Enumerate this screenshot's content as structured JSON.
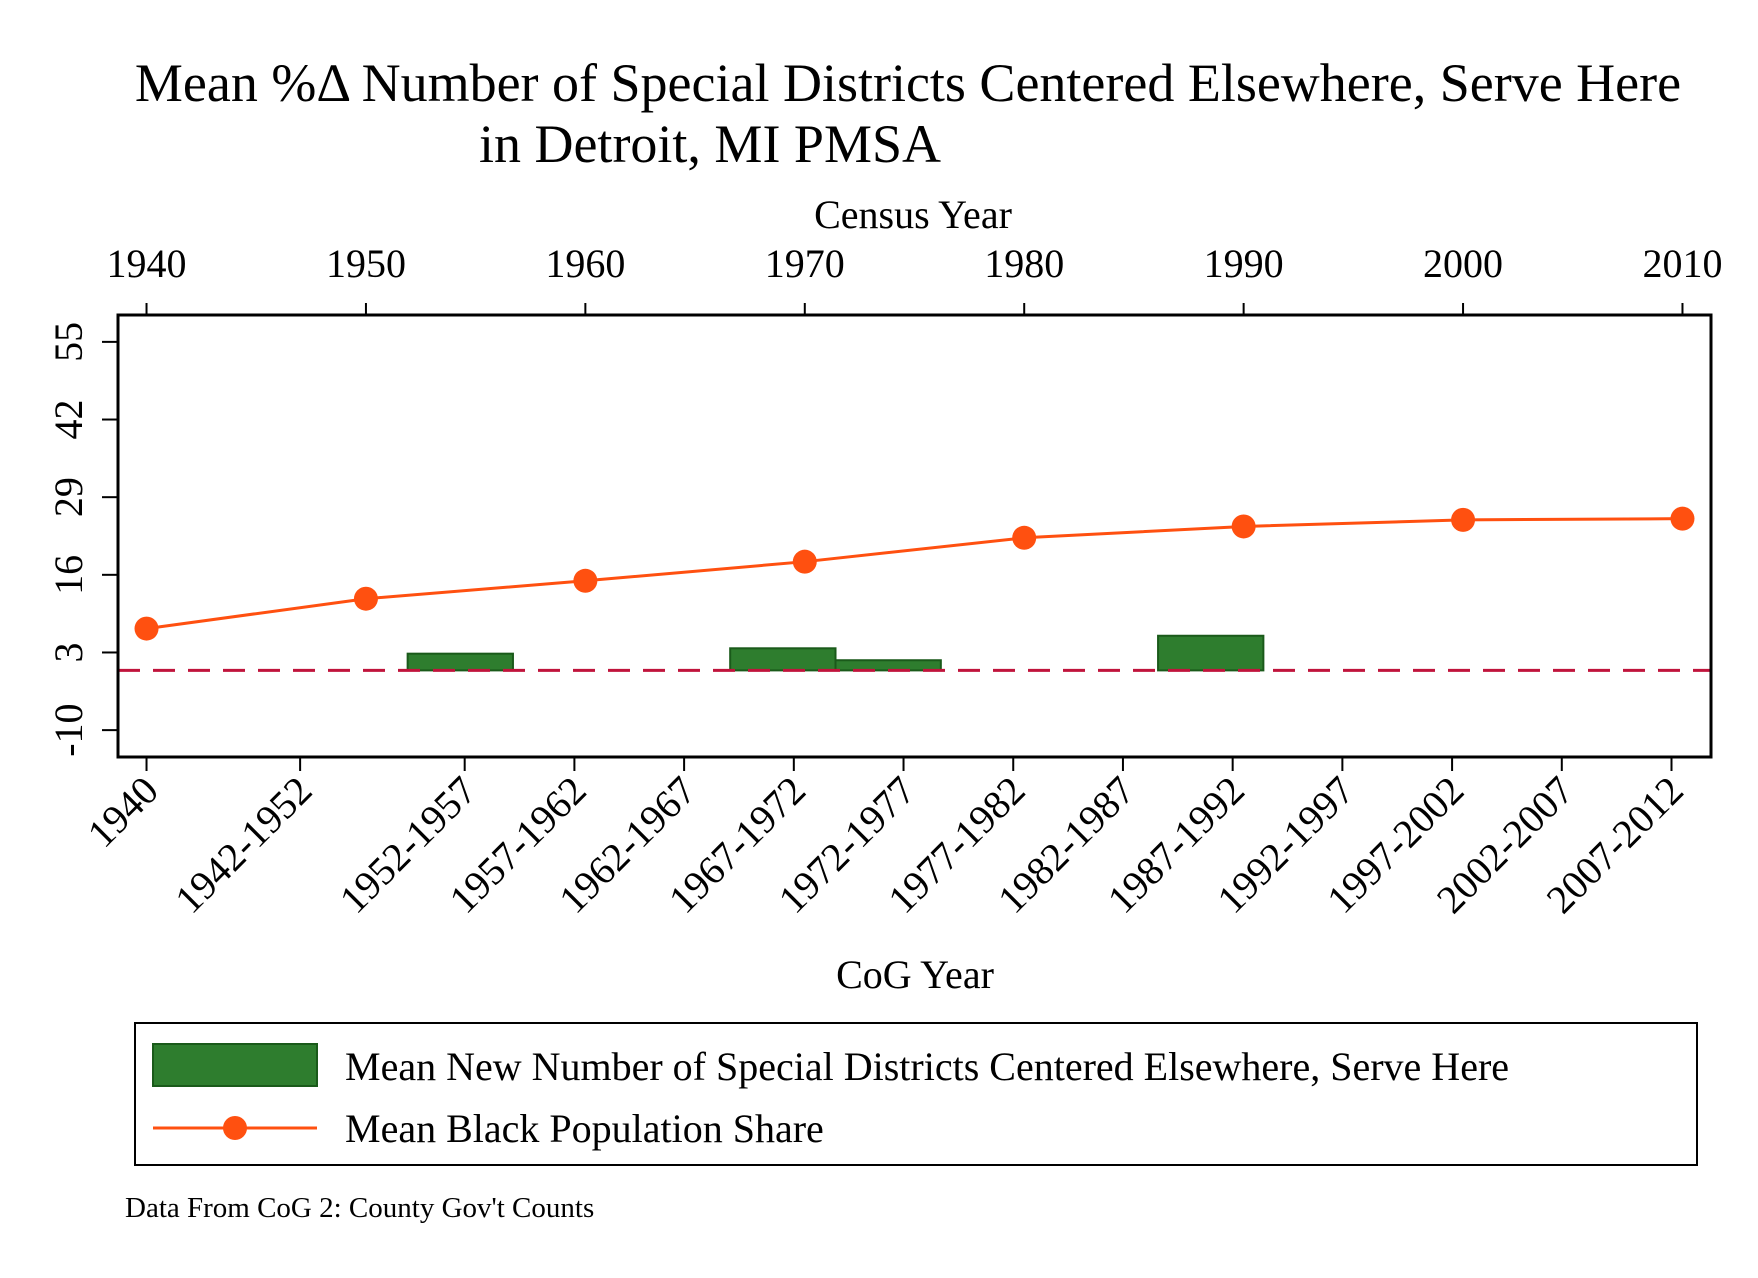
{
  "chart_data": {
    "type": "bar+line",
    "title": "Mean %Δ Number of Special Districts Centered Elsewhere, Serve Here",
    "subtitle": "in Detroit, MI PMSA",
    "x_top": {
      "label": "Census Year",
      "ticks": [
        "1940",
        "1950",
        "1960",
        "1970",
        "1980",
        "1990",
        "2000",
        "2010"
      ],
      "range": [
        1938.7,
        2011.3
      ]
    },
    "x_bottom": {
      "label": "CoG Year",
      "ticks": [
        {
          "pos": 1940,
          "label": "1940"
        },
        {
          "pos": 1947,
          "label": "1942-1952"
        },
        {
          "pos": 1954.5,
          "label": "1952-1957"
        },
        {
          "pos": 1959.5,
          "label": "1957-1962"
        },
        {
          "pos": 1964.5,
          "label": "1962-1967"
        },
        {
          "pos": 1969.5,
          "label": "1967-1972"
        },
        {
          "pos": 1974.5,
          "label": "1972-1977"
        },
        {
          "pos": 1979.5,
          "label": "1977-1982"
        },
        {
          "pos": 1984.5,
          "label": "1982-1987"
        },
        {
          "pos": 1989.5,
          "label": "1987-1992"
        },
        {
          "pos": 1994.5,
          "label": "1992-1997"
        },
        {
          "pos": 1999.5,
          "label": "1997-2002"
        },
        {
          "pos": 2004.5,
          "label": "2002-2007"
        },
        {
          "pos": 2009.5,
          "label": "2007-2012"
        }
      ]
    },
    "y": {
      "ticks": [
        "-10",
        "3",
        "16",
        "29",
        "42",
        "55"
      ],
      "range": [
        -14.5,
        59.5
      ],
      "baseline": 0
    },
    "bar_series": {
      "name": "Mean New Number of Special Districts Centered Elsewhere, Serve Here",
      "color": "#2e7d2e",
      "bars": [
        {
          "x0": 1951.9,
          "x1": 1956.7,
          "value": 2.8
        },
        {
          "x0": 1966.6,
          "x1": 1971.4,
          "value": 3.7
        },
        {
          "x0": 1971.4,
          "x1": 1976.2,
          "value": 1.7
        },
        {
          "x0": 1986.1,
          "x1": 1990.9,
          "value": 5.8
        }
      ]
    },
    "line_series": {
      "name": "Mean Black Population Share",
      "color": "#ff5010",
      "x": [
        1940,
        1950,
        1960,
        1970,
        1980,
        1990,
        2000,
        2010
      ],
      "values": [
        7.0,
        12.0,
        15.0,
        18.2,
        22.2,
        24.1,
        25.2,
        25.4
      ]
    },
    "reference_line": {
      "y": 0,
      "color": "#c0143c",
      "style": "dashed"
    },
    "note": "Data From CoG 2: County Gov't Counts"
  }
}
